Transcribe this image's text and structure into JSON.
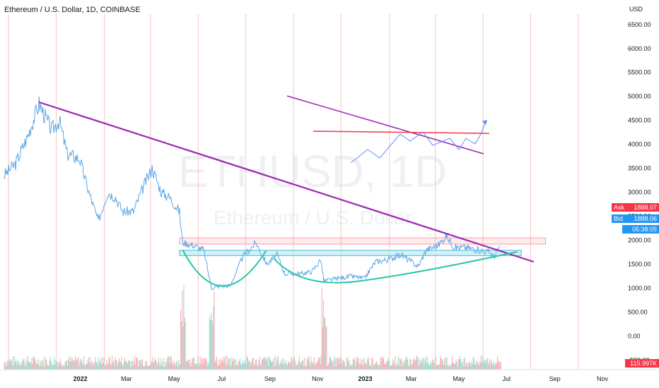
{
  "header": {
    "title": "Ethereum / U.S. Dollar, 1D, COINBASE"
  },
  "watermark": {
    "symbol": "ETHUSD, 1D",
    "description": "Ethereum / U.S. Dollar"
  },
  "price_axis": {
    "currency": "USD"
  },
  "quote": {
    "ask_label": "Ask",
    "ask_value": "1888.07",
    "bid_label": "Bid",
    "bid_value": "1888.06",
    "countdown": "05:38:05",
    "volume_value": "115.997K"
  },
  "colors": {
    "price_line": "#5aa6e6",
    "trend_line": "#9c27b0",
    "resistance": "#f23645",
    "support_fill": "#b2ebf2",
    "arc": "#26c6a5",
    "ask": "#f23645",
    "bid": "#2196f3"
  },
  "chart_data": {
    "type": "line",
    "ylabel": "USD",
    "ylim": [
      -700,
      6600
    ],
    "y_ticks": [
      "6500.00",
      "6000.00",
      "5500.00",
      "5000.00",
      "4500.00",
      "4000.00",
      "3500.00",
      "3000.00",
      "2500.00",
      "2000.00",
      "1500.00",
      "1000.00",
      "500.00",
      "0.00",
      "-500.00"
    ],
    "y_tick_values": [
      6500,
      6000,
      5500,
      5000,
      4500,
      4000,
      3500,
      3000,
      2500,
      2000,
      1500,
      1000,
      500,
      0,
      -500
    ],
    "x_ticks": [
      "2022",
      "Mar",
      "May",
      "Jul",
      "Sep",
      "Nov",
      "2023",
      "Mar",
      "May",
      "Jul",
      "Sep",
      "Nov"
    ],
    "x_tick_dates": [
      "2022-01-01",
      "2022-03-01",
      "2022-05-01",
      "2022-07-01",
      "2022-09-01",
      "2022-11-01",
      "2023-01-01",
      "2023-03-01",
      "2023-05-01",
      "2023-07-01",
      "2023-09-01",
      "2023-11-01"
    ],
    "xlim": [
      "2021-09-20",
      "2023-11-30"
    ],
    "series": [
      {
        "values": [
          {
            "x": "2021-09-25",
            "y": 3350
          },
          {
            "x": "2021-10-10",
            "y": 3600
          },
          {
            "x": "2021-10-25",
            "y": 4150
          },
          {
            "x": "2021-11-09",
            "y": 4850
          },
          {
            "x": "2021-11-25",
            "y": 4300
          },
          {
            "x": "2021-12-05",
            "y": 4500
          },
          {
            "x": "2021-12-15",
            "y": 3800
          },
          {
            "x": "2021-12-31",
            "y": 3700
          },
          {
            "x": "2022-01-10",
            "y": 3100
          },
          {
            "x": "2022-01-24",
            "y": 2400
          },
          {
            "x": "2022-02-05",
            "y": 3000
          },
          {
            "x": "2022-02-15",
            "y": 2900
          },
          {
            "x": "2022-02-24",
            "y": 2600
          },
          {
            "x": "2022-03-10",
            "y": 2600
          },
          {
            "x": "2022-03-25",
            "y": 3200
          },
          {
            "x": "2022-04-03",
            "y": 3500
          },
          {
            "x": "2022-04-15",
            "y": 3000
          },
          {
            "x": "2022-04-25",
            "y": 2900
          },
          {
            "x": "2022-05-08",
            "y": 2600
          },
          {
            "x": "2022-05-12",
            "y": 1950
          },
          {
            "x": "2022-05-25",
            "y": 1900
          },
          {
            "x": "2022-06-08",
            "y": 1800
          },
          {
            "x": "2022-06-18",
            "y": 1000
          },
          {
            "x": "2022-06-30",
            "y": 1050
          },
          {
            "x": "2022-07-12",
            "y": 1050
          },
          {
            "x": "2022-07-28",
            "y": 1650
          },
          {
            "x": "2022-08-14",
            "y": 1950
          },
          {
            "x": "2022-08-28",
            "y": 1500
          },
          {
            "x": "2022-09-10",
            "y": 1700
          },
          {
            "x": "2022-09-20",
            "y": 1300
          },
          {
            "x": "2022-10-10",
            "y": 1300
          },
          {
            "x": "2022-10-25",
            "y": 1350
          },
          {
            "x": "2022-11-05",
            "y": 1600
          },
          {
            "x": "2022-11-09",
            "y": 1150
          },
          {
            "x": "2022-11-25",
            "y": 1200
          },
          {
            "x": "2022-12-15",
            "y": 1250
          },
          {
            "x": "2022-12-31",
            "y": 1200
          },
          {
            "x": "2023-01-14",
            "y": 1550
          },
          {
            "x": "2023-01-31",
            "y": 1600
          },
          {
            "x": "2023-02-16",
            "y": 1700
          },
          {
            "x": "2023-03-10",
            "y": 1450
          },
          {
            "x": "2023-03-20",
            "y": 1800
          },
          {
            "x": "2023-04-05",
            "y": 1900
          },
          {
            "x": "2023-04-15",
            "y": 2100
          },
          {
            "x": "2023-04-25",
            "y": 1850
          },
          {
            "x": "2023-05-10",
            "y": 1850
          },
          {
            "x": "2023-05-25",
            "y": 1800
          },
          {
            "x": "2023-06-10",
            "y": 1750
          },
          {
            "x": "2023-06-15",
            "y": 1650
          },
          {
            "x": "2023-06-23",
            "y": 1888
          }
        ]
      }
    ],
    "volume": [
      {
        "x": "2022-05-12",
        "v": "high"
      },
      {
        "x": "2022-06-18",
        "v": "high"
      },
      {
        "x": "2022-11-09",
        "v": "high"
      }
    ]
  }
}
